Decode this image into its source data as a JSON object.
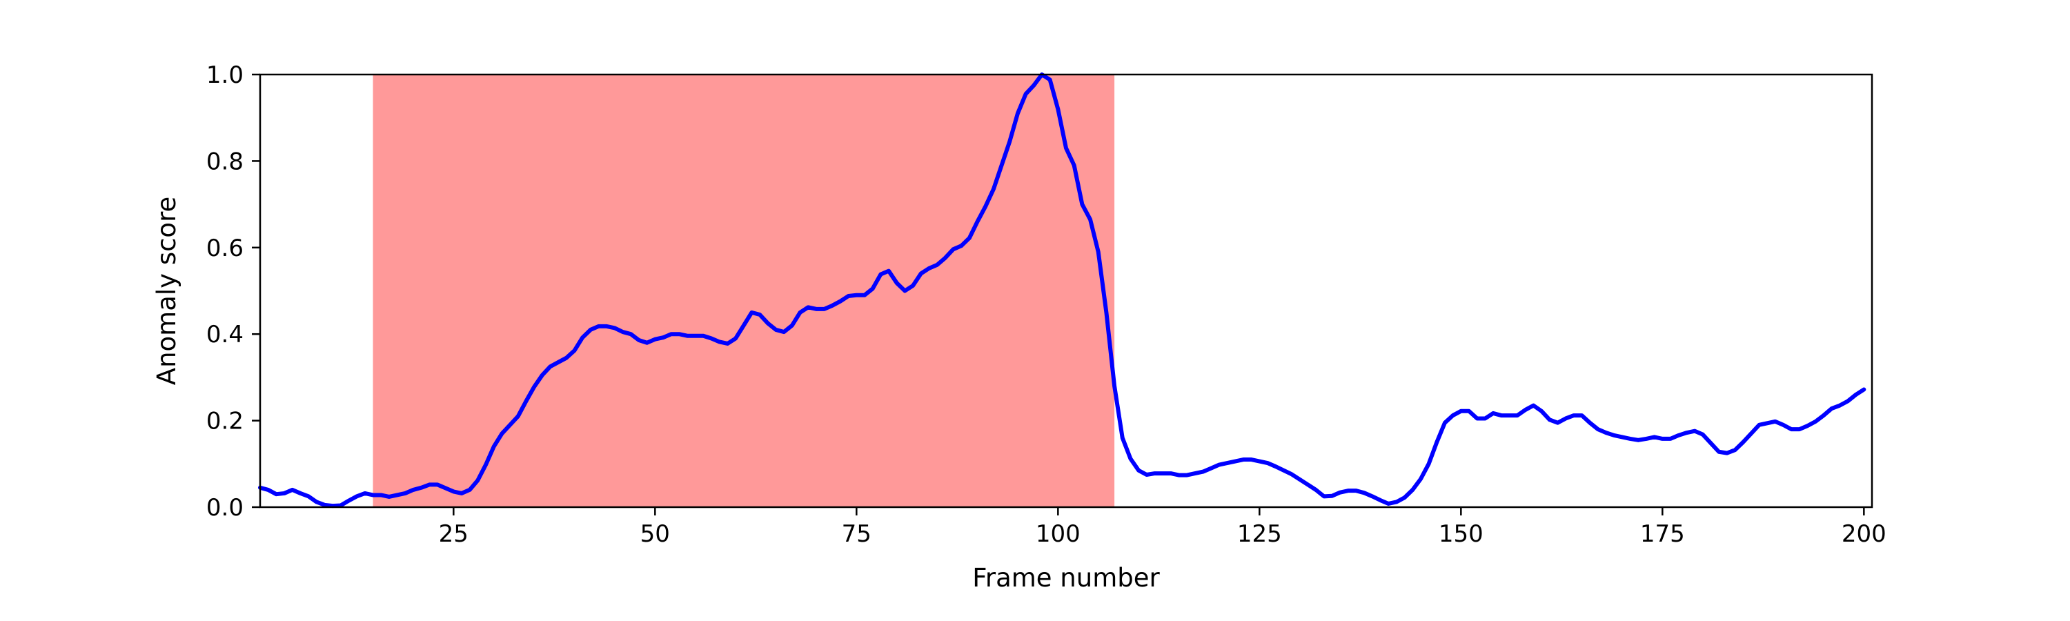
{
  "chart_data": {
    "type": "line",
    "title": "",
    "xlabel": "Frame number",
    "ylabel": "Anomaly score",
    "xlim": [
      1,
      201
    ],
    "ylim": [
      0,
      1.0
    ],
    "x_ticks": [
      25,
      50,
      75,
      100,
      125,
      150,
      175,
      200
    ],
    "y_ticks": [
      0.0,
      0.2,
      0.4,
      0.6,
      0.8,
      1.0
    ],
    "x_tick_labels": [
      "25",
      "50",
      "75",
      "100",
      "125",
      "150",
      "175",
      "200"
    ],
    "y_tick_labels": [
      "0.0",
      "0.2",
      "0.4",
      "0.6",
      "0.8",
      "1.0"
    ],
    "grid": false,
    "highlight_region": {
      "x_start": 15,
      "x_end": 107,
      "color": "#ff9999"
    },
    "series": [
      {
        "color": "#0000ff",
        "x": [
          1,
          2,
          3,
          4,
          5,
          6,
          7,
          8,
          9,
          10,
          11,
          12,
          13,
          14,
          15,
          16,
          17,
          18,
          19,
          20,
          21,
          22,
          23,
          24,
          25,
          26,
          27,
          28,
          29,
          30,
          31,
          32,
          33,
          34,
          35,
          36,
          37,
          38,
          39,
          40,
          41,
          42,
          43,
          44,
          45,
          46,
          47,
          48,
          49,
          50,
          51,
          52,
          53,
          54,
          55,
          56,
          57,
          58,
          59,
          60,
          61,
          62,
          63,
          64,
          65,
          66,
          67,
          68,
          69,
          70,
          71,
          72,
          73,
          74,
          75,
          76,
          77,
          78,
          79,
          80,
          81,
          82,
          83,
          84,
          85,
          86,
          87,
          88,
          89,
          90,
          91,
          92,
          93,
          94,
          95,
          96,
          97,
          98,
          99,
          100,
          101,
          102,
          103,
          104,
          105,
          106,
          107,
          108,
          109,
          110,
          111,
          112,
          113,
          114,
          115,
          116,
          117,
          118,
          119,
          120,
          121,
          122,
          123,
          124,
          125,
          126,
          127,
          128,
          129,
          130,
          131,
          132,
          133,
          134,
          135,
          136,
          137,
          138,
          139,
          140,
          141,
          142,
          143,
          144,
          145,
          146,
          147,
          148,
          149,
          150,
          151,
          152,
          153,
          154,
          155,
          156,
          157,
          158,
          159,
          160,
          161,
          162,
          163,
          164,
          165,
          166,
          167,
          168,
          169,
          170,
          171,
          172,
          173,
          174,
          175,
          176,
          177,
          178,
          179,
          180,
          181,
          182,
          183,
          184,
          185,
          186,
          187,
          188,
          189,
          190,
          191,
          192,
          193,
          194,
          195,
          196,
          197,
          198,
          199,
          200
        ],
        "y": [
          0.045,
          0.04,
          0.03,
          0.032,
          0.04,
          0.032,
          0.025,
          0.012,
          0.005,
          0.003,
          0.004,
          0.015,
          0.025,
          0.032,
          0.028,
          0.028,
          0.024,
          0.028,
          0.032,
          0.04,
          0.045,
          0.052,
          0.052,
          0.044,
          0.036,
          0.032,
          0.04,
          0.062,
          0.098,
          0.14,
          0.17,
          0.19,
          0.21,
          0.245,
          0.278,
          0.305,
          0.325,
          0.335,
          0.345,
          0.362,
          0.392,
          0.41,
          0.418,
          0.418,
          0.414,
          0.405,
          0.4,
          0.386,
          0.38,
          0.388,
          0.392,
          0.4,
          0.4,
          0.396,
          0.396,
          0.396,
          0.39,
          0.382,
          0.378,
          0.39,
          0.42,
          0.45,
          0.445,
          0.425,
          0.41,
          0.405,
          0.42,
          0.45,
          0.462,
          0.458,
          0.458,
          0.466,
          0.476,
          0.488,
          0.49,
          0.49,
          0.505,
          0.538,
          0.546,
          0.518,
          0.5,
          0.512,
          0.54,
          0.552,
          0.56,
          0.576,
          0.596,
          0.604,
          0.622,
          0.66,
          0.695,
          0.735,
          0.79,
          0.845,
          0.91,
          0.955,
          0.975,
          1.0,
          0.988,
          0.92,
          0.83,
          0.79,
          0.7,
          0.665,
          0.59,
          0.45,
          0.28,
          0.16,
          0.112,
          0.085,
          0.075,
          0.078,
          0.078,
          0.078,
          0.074,
          0.074,
          0.078,
          0.082,
          0.09,
          0.098,
          0.102,
          0.106,
          0.11,
          0.11,
          0.106,
          0.102,
          0.094,
          0.085,
          0.076,
          0.064,
          0.052,
          0.04,
          0.025,
          0.026,
          0.034,
          0.038,
          0.038,
          0.033,
          0.025,
          0.016,
          0.008,
          0.012,
          0.022,
          0.04,
          0.065,
          0.1,
          0.15,
          0.195,
          0.212,
          0.222,
          0.222,
          0.205,
          0.205,
          0.217,
          0.212,
          0.212,
          0.212,
          0.225,
          0.235,
          0.222,
          0.202,
          0.195,
          0.205,
          0.212,
          0.212,
          0.195,
          0.18,
          0.172,
          0.166,
          0.162,
          0.158,
          0.155,
          0.158,
          0.162,
          0.158,
          0.158,
          0.166,
          0.172,
          0.176,
          0.168,
          0.148,
          0.128,
          0.125,
          0.132,
          0.15,
          0.17,
          0.19,
          0.194,
          0.198,
          0.19,
          0.18,
          0.18,
          0.188,
          0.198,
          0.212,
          0.228,
          0.235,
          0.245,
          0.26,
          0.272
        ]
      }
    ]
  }
}
